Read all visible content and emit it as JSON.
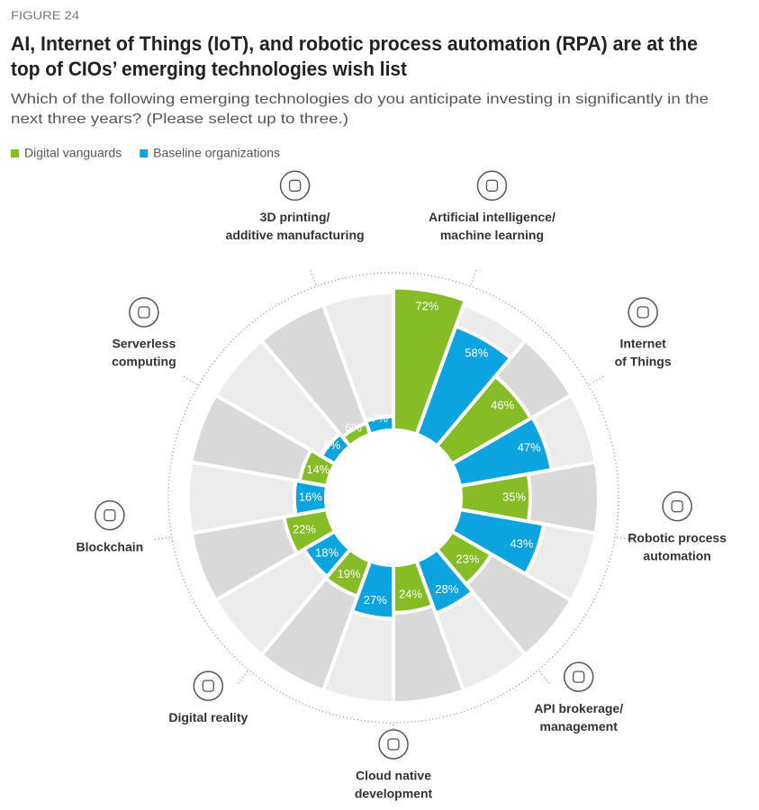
{
  "chart_data": {
    "type": "radial-bar",
    "figure_label": "FIGURE 24",
    "title": [
      "AI, Internet of Things (IoT), and robotic process automation (RPA) are at the",
      "top of CIOs’ emerging technologies wish list"
    ],
    "subtitle": [
      "Which of the following emerging technologies do you anticipate investing in significantly in the",
      "next three years? (Please select up to three.)"
    ],
    "categories": [
      [
        "Artificial intelligence/",
        "machine learning"
      ],
      [
        "Internet",
        "of Things"
      ],
      [
        "Robotic process",
        "automation"
      ],
      [
        "API brokerage/",
        "management"
      ],
      [
        "Cloud native",
        "development"
      ],
      [
        "Digital reality"
      ],
      [
        "Blockchain"
      ],
      [
        "Serverless",
        "computing"
      ],
      [
        "3D printing/",
        "additive manufacturing"
      ]
    ],
    "series": [
      {
        "name": "Digital vanguards",
        "color": "#86bc25",
        "values": [
          72,
          46,
          35,
          23,
          24,
          19,
          22,
          14,
          6
        ],
        "value_labels": [
          "72%",
          "46%",
          "35%",
          "23%",
          "24%",
          "19%",
          "22%",
          "14%",
          "6%"
        ]
      },
      {
        "name": "Baseline organizations",
        "color": "#0ca4e0",
        "values": [
          58,
          47,
          43,
          28,
          27,
          18,
          16,
          8,
          7
        ],
        "value_labels": [
          "58%",
          "47%",
          "43%",
          "28%",
          "27%",
          "18%",
          "16%",
          "8%",
          "7%"
        ]
      }
    ]
  }
}
